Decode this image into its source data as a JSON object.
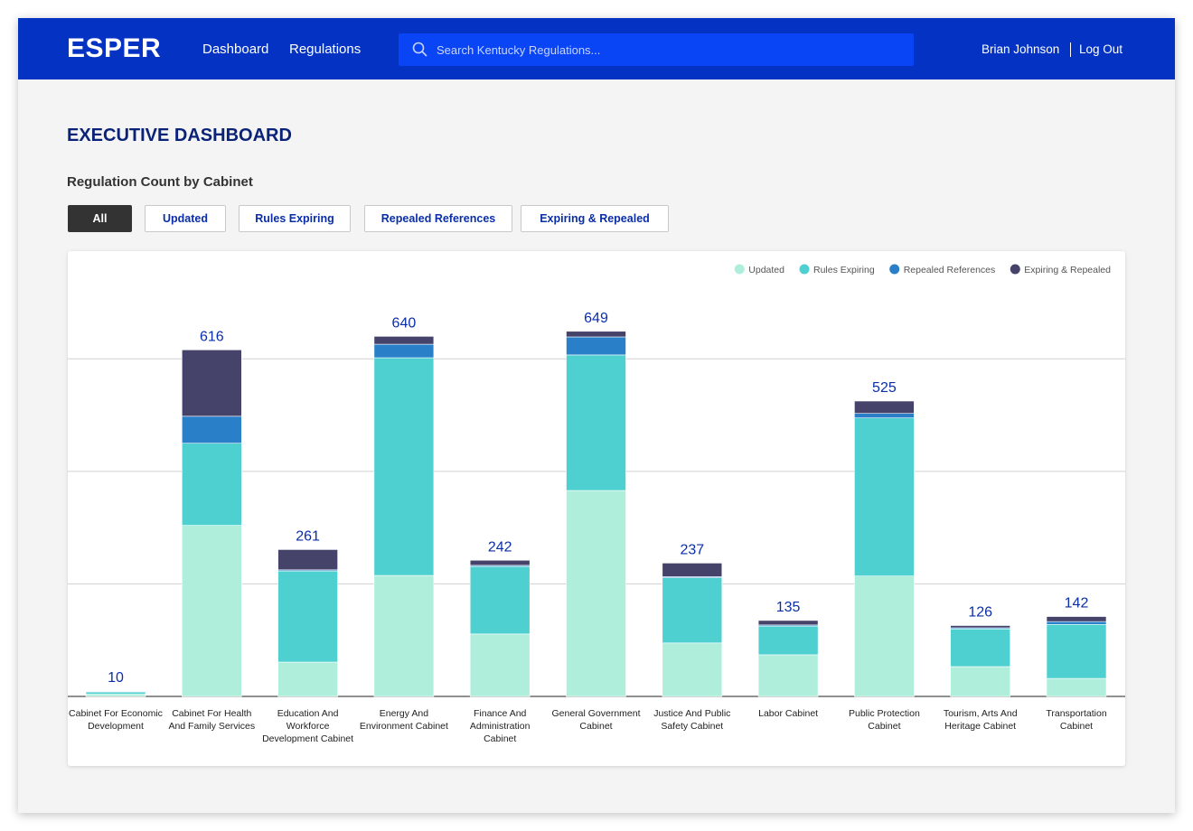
{
  "header": {
    "logo": "ESPER",
    "nav": [
      "Dashboard",
      "Regulations"
    ],
    "search_placeholder": "Search Kentucky Regulations...",
    "user": "Brian Johnson",
    "logout": "Log Out"
  },
  "page_title": "EXECUTIVE DASHBOARD",
  "section_title": "Regulation Count by Cabinet",
  "filters": [
    "All",
    "Updated",
    "Rules Expiring",
    "Repealed References",
    "Expiring & Repealed"
  ],
  "active_filter": 0,
  "chart_data": {
    "type": "bar",
    "stacked": true,
    "categories": [
      "Cabinet For Economic Development",
      "Cabinet For Health And Family Services",
      "Education And Workforce Development Cabinet",
      "Energy And Environment Cabinet",
      "Finance And Administration Cabinet",
      "General Government Cabinet",
      "Justice And Public Safety Cabinet",
      "Labor Cabinet",
      "Public Protection Cabinet",
      "Tourism, Arts And Heritage Cabinet",
      "Transportation Cabinet"
    ],
    "series": [
      {
        "name": "Updated",
        "color": "#aeeeda",
        "values": [
          4,
          304,
          61,
          215,
          111,
          366,
          95,
          74,
          214,
          53,
          32
        ]
      },
      {
        "name": "Rules Expiring",
        "color": "#4ecfd0",
        "values": [
          4,
          146,
          162,
          387,
          120,
          241,
          116,
          51,
          281,
          67,
          96
        ]
      },
      {
        "name": "Repealed References",
        "color": "#2a80c8",
        "values": [
          1,
          48,
          2,
          24,
          2,
          32,
          2,
          2,
          8,
          2,
          5
        ]
      },
      {
        "name": "Expiring & Repealed",
        "color": "#46436b",
        "values": [
          1,
          118,
          36,
          14,
          9,
          10,
          24,
          8,
          22,
          4,
          9
        ]
      }
    ],
    "totals": [
      10,
      616,
      261,
      640,
      242,
      649,
      237,
      135,
      525,
      126,
      142
    ],
    "ylim": [
      0,
      700
    ],
    "yticks": [
      0,
      200,
      400,
      600
    ],
    "grid": true,
    "legend": "top-right"
  }
}
